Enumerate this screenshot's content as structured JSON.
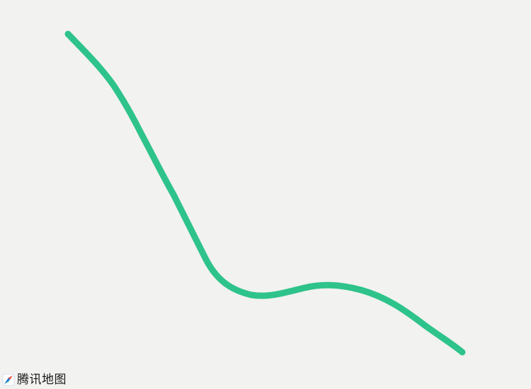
{
  "map": {
    "background_color": "#f2f2f0",
    "route_color": "#2ec38b"
  },
  "attribution": {
    "logo_icon": "tencent-maps-logo-icon",
    "text": "腾讯地图"
  }
}
